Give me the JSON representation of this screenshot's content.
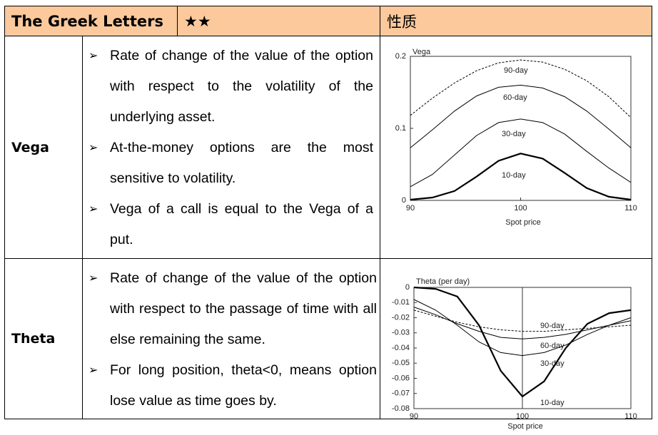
{
  "header": {
    "title": "The Greek Letters",
    "stars": "★★",
    "property": "性质"
  },
  "rows": [
    {
      "name": "Vega",
      "bullets": [
        "Rate of change of the value of the option with respect to the volatility of the underlying asset.",
        "At-the-money options are the most sensitive to volatility.",
        "Vega of a call is equal to the Vega of a put."
      ],
      "chart": {
        "type": "line",
        "y_label": "Vega",
        "x_label": "Spot price",
        "x": [
          90,
          92,
          94,
          96,
          98,
          100,
          102,
          104,
          106,
          108,
          110
        ],
        "series": [
          {
            "name": "90-day",
            "color": "#000000",
            "values": [
              0.118,
              0.142,
              0.163,
              0.18,
              0.191,
              0.195,
              0.192,
              0.182,
              0.166,
              0.144,
              0.115
            ]
          },
          {
            "name": "60-day",
            "color": "#000000",
            "values": [
              0.073,
              0.098,
              0.124,
              0.145,
              0.157,
              0.16,
              0.156,
              0.144,
              0.124,
              0.099,
              0.073
            ]
          },
          {
            "name": "30-day",
            "color": "#000000",
            "values": [
              0.019,
              0.036,
              0.063,
              0.09,
              0.108,
              0.113,
              0.108,
              0.092,
              0.068,
              0.045,
              0.025
            ]
          },
          {
            "name": "10-day",
            "color": "#000000",
            "values": [
              0.001,
              0.004,
              0.013,
              0.033,
              0.055,
              0.065,
              0.058,
              0.038,
              0.017,
              0.005,
              0.001
            ]
          }
        ],
        "xlim": [
          90,
          110
        ],
        "ylim": [
          0,
          0.2
        ],
        "xticks": [
          90,
          100,
          110
        ],
        "yticks": [
          0,
          0.1,
          0.2
        ],
        "center_line": false
      }
    },
    {
      "name": "Theta",
      "bullets": [
        "Rate of change of the value of the option with respect to the passage of time with all else remaining the same.",
        "For long position, theta<0, means option lose value as time goes by."
      ],
      "chart": {
        "type": "line",
        "y_label": "Theta (per day)",
        "x_label": "Spot price",
        "x": [
          90,
          92,
          94,
          96,
          98,
          100,
          102,
          104,
          106,
          108,
          110
        ],
        "series": [
          {
            "name": "90-day",
            "color": "#000000",
            "values": [
              -0.015,
              -0.019,
              -0.023,
              -0.026,
              -0.028,
              -0.029,
              -0.029,
              -0.028,
              -0.027,
              -0.026,
              -0.025
            ]
          },
          {
            "name": "60-day",
            "color": "#000000",
            "values": [
              -0.013,
              -0.018,
              -0.024,
              -0.029,
              -0.033,
              -0.034,
              -0.033,
              -0.031,
              -0.028,
              -0.025,
              -0.022
            ]
          },
          {
            "name": "30-day",
            "color": "#000000",
            "values": [
              -0.008,
              -0.015,
              -0.025,
              -0.036,
              -0.043,
              -0.045,
              -0.043,
              -0.038,
              -0.031,
              -0.025,
              -0.02
            ]
          },
          {
            "name": "10-day",
            "color": "#000000",
            "values": [
              0,
              -0.001,
              -0.006,
              -0.025,
              -0.055,
              -0.072,
              -0.062,
              -0.04,
              -0.024,
              -0.017,
              -0.015
            ]
          }
        ],
        "xlim": [
          90,
          110
        ],
        "ylim": [
          -0.08,
          0
        ],
        "xticks": [
          90,
          100,
          110
        ],
        "yticks": [
          0,
          -0.01,
          -0.02,
          -0.03,
          -0.04,
          -0.05,
          -0.06,
          -0.07,
          -0.08
        ],
        "center_line": true
      }
    }
  ]
}
